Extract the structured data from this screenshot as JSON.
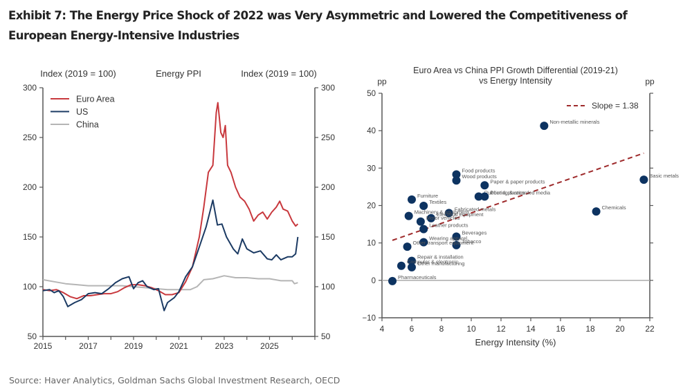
{
  "header": {
    "title": "Exhibit 7: The Energy Price Shock of 2022 was Very Asymmetric and Lowered the Competitiveness of European Energy-Intensive Industries"
  },
  "footer": {
    "source": "Source: Haver Analytics, Goldman Sachs Global Investment Research, OECD"
  },
  "chart_data": [
    {
      "type": "line",
      "title": "Energy PPI",
      "ylabel_left": "Index (2019 = 100)",
      "ylabel_right": "Index (2019 = 100)",
      "xlabel": "",
      "xlim": [
        2015,
        2027
      ],
      "ylim": [
        50,
        300
      ],
      "xticks": [
        2015,
        2017,
        2019,
        2021,
        2023,
        2025
      ],
      "yticks": [
        50,
        100,
        150,
        200,
        250,
        300
      ],
      "legend_position": "top-left",
      "grid": false,
      "series": [
        {
          "name": "Euro Area",
          "color": "#c8383d",
          "points": [
            [
              2015.0,
              97
            ],
            [
              2015.3,
              96
            ],
            [
              2015.6,
              97
            ],
            [
              2015.9,
              94
            ],
            [
              2016.2,
              90
            ],
            [
              2016.5,
              88
            ],
            [
              2016.8,
              91
            ],
            [
              2017.1,
              91
            ],
            [
              2017.4,
              92
            ],
            [
              2017.7,
              93
            ],
            [
              2018.0,
              93
            ],
            [
              2018.3,
              95
            ],
            [
              2018.6,
              99
            ],
            [
              2018.9,
              102
            ],
            [
              2019.2,
              102
            ],
            [
              2019.5,
              101
            ],
            [
              2019.8,
              99
            ],
            [
              2020.1,
              96
            ],
            [
              2020.4,
              92
            ],
            [
              2020.7,
              92
            ],
            [
              2021.0,
              94
            ],
            [
              2021.3,
              105
            ],
            [
              2021.6,
              120
            ],
            [
              2021.9,
              150
            ],
            [
              2022.1,
              180
            ],
            [
              2022.3,
              215
            ],
            [
              2022.5,
              222
            ],
            [
              2022.65,
              275
            ],
            [
              2022.72,
              285
            ],
            [
              2022.85,
              255
            ],
            [
              2022.95,
              250
            ],
            [
              2023.05,
              262
            ],
            [
              2023.15,
              222
            ],
            [
              2023.3,
              215
            ],
            [
              2023.5,
              200
            ],
            [
              2023.7,
              190
            ],
            [
              2023.9,
              186
            ],
            [
              2024.1,
              178
            ],
            [
              2024.3,
              166
            ],
            [
              2024.5,
              172
            ],
            [
              2024.7,
              175
            ],
            [
              2024.9,
              168
            ],
            [
              2025.1,
              175
            ],
            [
              2025.3,
              180
            ],
            [
              2025.45,
              186
            ],
            [
              2025.6,
              178
            ],
            [
              2025.8,
              176
            ],
            [
              2026.0,
              166
            ],
            [
              2026.15,
              161
            ],
            [
              2026.25,
              163
            ]
          ]
        },
        {
          "name": "US",
          "color": "#1b3a63",
          "points": [
            [
              2015.0,
              96
            ],
            [
              2015.3,
              97
            ],
            [
              2015.5,
              94
            ],
            [
              2015.7,
              96
            ],
            [
              2015.9,
              90
            ],
            [
              2016.1,
              80
            ],
            [
              2016.4,
              84
            ],
            [
              2016.7,
              87
            ],
            [
              2017.0,
              93
            ],
            [
              2017.3,
              94
            ],
            [
              2017.6,
              93
            ],
            [
              2017.9,
              98
            ],
            [
              2018.2,
              104
            ],
            [
              2018.5,
              108
            ],
            [
              2018.8,
              110
            ],
            [
              2019.0,
              98
            ],
            [
              2019.2,
              104
            ],
            [
              2019.4,
              106
            ],
            [
              2019.6,
              100
            ],
            [
              2019.9,
              97
            ],
            [
              2020.1,
              98
            ],
            [
              2020.35,
              76
            ],
            [
              2020.5,
              84
            ],
            [
              2020.8,
              89
            ],
            [
              2021.0,
              95
            ],
            [
              2021.3,
              110
            ],
            [
              2021.6,
              120
            ],
            [
              2021.9,
              140
            ],
            [
              2022.2,
              160
            ],
            [
              2022.5,
              187
            ],
            [
              2022.7,
              162
            ],
            [
              2022.9,
              163
            ],
            [
              2023.1,
              150
            ],
            [
              2023.4,
              138
            ],
            [
              2023.6,
              133
            ],
            [
              2023.8,
              148
            ],
            [
              2024.0,
              138
            ],
            [
              2024.3,
              134
            ],
            [
              2024.6,
              136
            ],
            [
              2024.9,
              128
            ],
            [
              2025.1,
              127
            ],
            [
              2025.3,
              132
            ],
            [
              2025.5,
              127
            ],
            [
              2025.8,
              130
            ],
            [
              2026.0,
              130
            ],
            [
              2026.15,
              133
            ],
            [
              2026.25,
              150
            ]
          ]
        },
        {
          "name": "China",
          "color": "#b5b5b5",
          "points": [
            [
              2015.0,
              107
            ],
            [
              2015.5,
              105
            ],
            [
              2016.0,
              103
            ],
            [
              2016.5,
              102
            ],
            [
              2017.0,
              101
            ],
            [
              2017.5,
              101
            ],
            [
              2018.0,
              101
            ],
            [
              2018.5,
              101
            ],
            [
              2019.0,
              100
            ],
            [
              2019.5,
              99
            ],
            [
              2020.0,
              98
            ],
            [
              2020.5,
              97
            ],
            [
              2021.0,
              97
            ],
            [
              2021.5,
              97
            ],
            [
              2021.8,
              100
            ],
            [
              2022.1,
              107
            ],
            [
              2022.5,
              108
            ],
            [
              2023.0,
              111
            ],
            [
              2023.5,
              109
            ],
            [
              2024.0,
              109
            ],
            [
              2024.5,
              108
            ],
            [
              2025.0,
              108
            ],
            [
              2025.5,
              106
            ],
            [
              2026.0,
              106
            ],
            [
              2026.1,
              103
            ],
            [
              2026.25,
              104
            ]
          ]
        }
      ]
    },
    {
      "type": "scatter",
      "title": "Euro Area vs China PPI Growth Differential (2019-21) vs Energy Intensity",
      "title_lines": [
        "Euro Area vs China PPI Growth Differential (2019-21)",
        "vs Energy Intensity"
      ],
      "xlabel": "Energy Intensity (%)",
      "ylabel_left": "pp",
      "ylabel_right": "pp",
      "xlim": [
        4,
        22
      ],
      "ylim": [
        -10,
        50
      ],
      "xticks": [
        4,
        6,
        8,
        10,
        12,
        14,
        16,
        18,
        20,
        22
      ],
      "yticks": [
        -10,
        0,
        10,
        20,
        30,
        40,
        50
      ],
      "legend_position": "top-right",
      "grid": false,
      "point_color": "#0d3361",
      "trendline": {
        "label": "Slope = 1.38",
        "slope": 1.38,
        "color": "#9e2a2b",
        "x": [
          4.7,
          21.6
        ],
        "y": [
          10.7,
          34.0
        ]
      },
      "points": [
        {
          "label": "Non-metallic minerals",
          "x": 14.9,
          "y": 41.3
        },
        {
          "label": "Basic metals",
          "x": 21.6,
          "y": 26.9
        },
        {
          "label": "Chemicals",
          "x": 18.4,
          "y": 18.4
        },
        {
          "label": "Food products",
          "x": 9.0,
          "y": 28.3
        },
        {
          "label": "Wood products",
          "x": 9.0,
          "y": 26.7
        },
        {
          "label": "Paper & paper products",
          "x": 10.9,
          "y": 25.4
        },
        {
          "label": "Rubber & plastics",
          "x": 10.5,
          "y": 22.4
        },
        {
          "label": "Printing & recorded media",
          "x": 10.9,
          "y": 22.4
        },
        {
          "label": "Furniture",
          "x": 6.0,
          "y": 21.6
        },
        {
          "label": "Textiles",
          "x": 6.8,
          "y": 19.9
        },
        {
          "label": "Fabricated metals",
          "x": 8.5,
          "y": 18.0
        },
        {
          "label": "Machinery & equipment",
          "x": 5.8,
          "y": 17.2
        },
        {
          "label": "Electrical equipment",
          "x": 7.3,
          "y": 16.6
        },
        {
          "label": "Motor vehicles",
          "x": 6.6,
          "y": 15.7
        },
        {
          "label": "Leather products",
          "x": 6.8,
          "y": 13.7
        },
        {
          "label": "Beverages",
          "x": 9.0,
          "y": 11.7
        },
        {
          "label": "Wearing apparel",
          "x": 6.8,
          "y": 10.2
        },
        {
          "label": "Tobacco",
          "x": 9.0,
          "y": 9.4
        },
        {
          "label": "Other transport equipment",
          "x": 5.7,
          "y": 9.0
        },
        {
          "label": "Repair & installation",
          "x": 6.0,
          "y": 5.2
        },
        {
          "label": "Computer & electronic",
          "x": 5.3,
          "y": 3.9
        },
        {
          "label": "Other manufacturing",
          "x": 6.0,
          "y": 3.5
        },
        {
          "label": "Pharmaceuticals",
          "x": 4.7,
          "y": -0.2
        }
      ]
    }
  ]
}
